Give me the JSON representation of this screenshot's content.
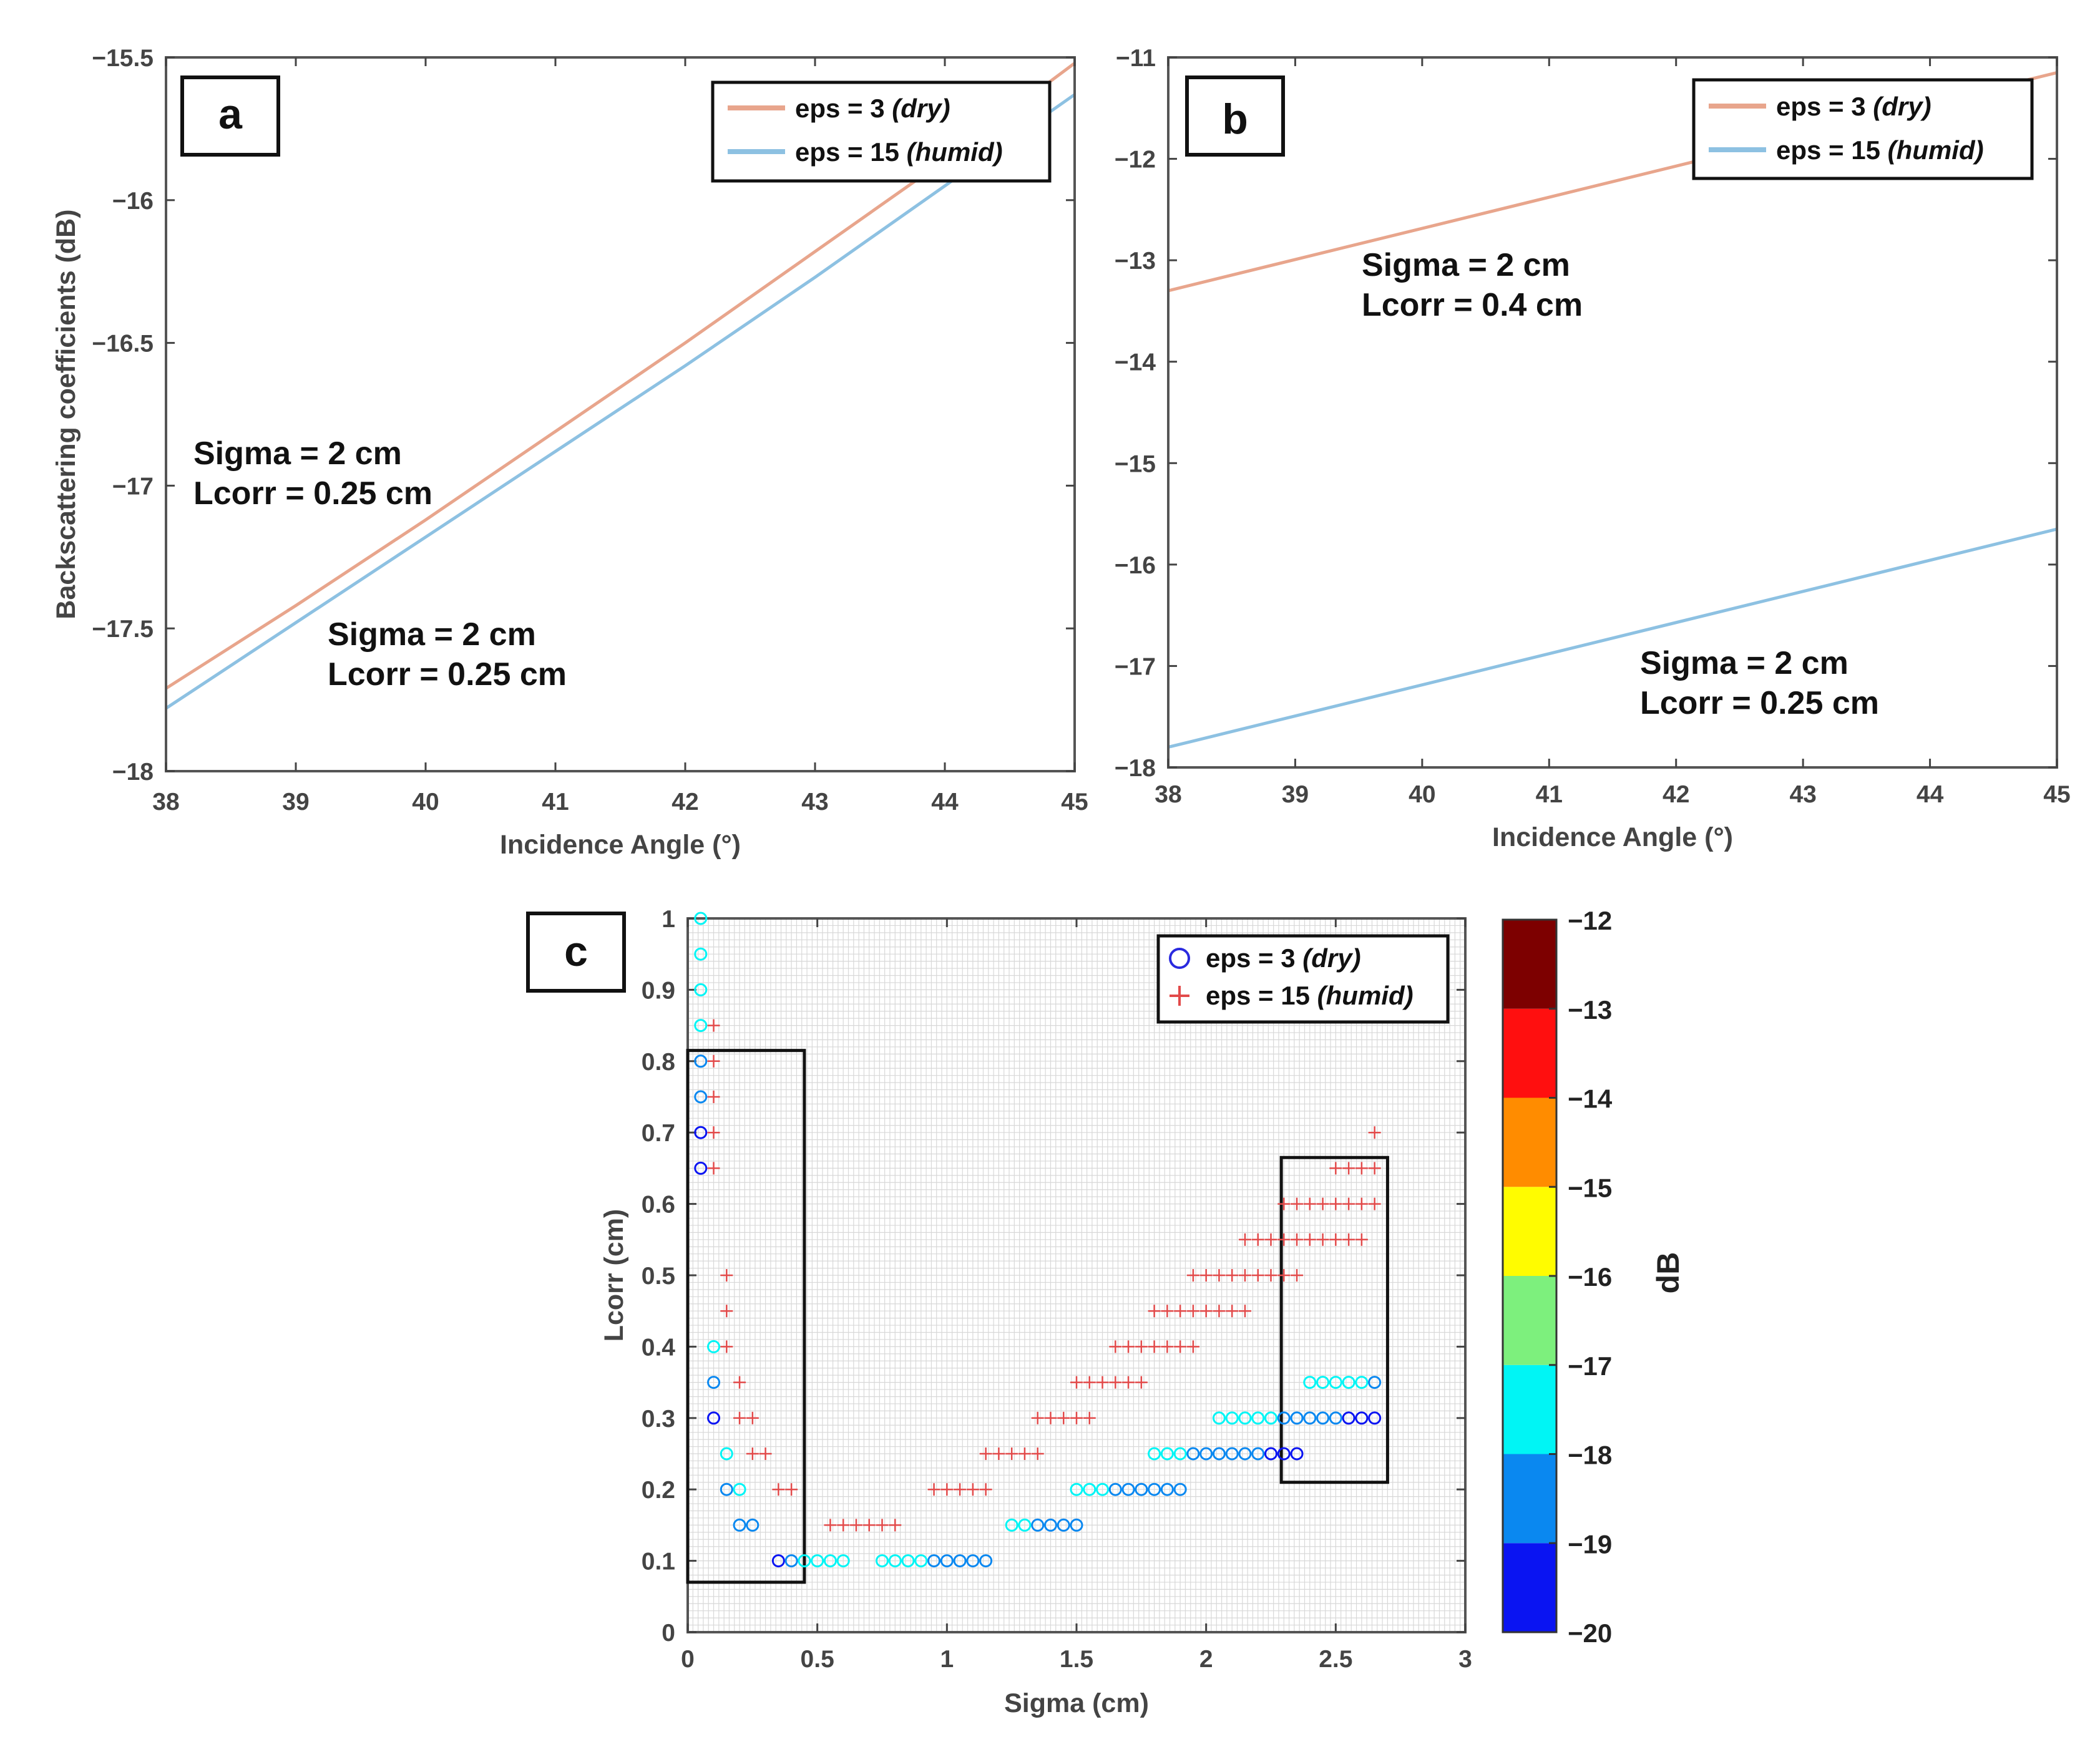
{
  "colors": {
    "dry_line": "#e8a58c",
    "humid_line": "#8dc1e2",
    "dry_marker": "#2a2adf",
    "humid_marker": "#e24a4a",
    "grid_c": "#d8d8d8",
    "axis": "#444444"
  },
  "chart_data": [
    {
      "panel": "a",
      "type": "line",
      "xlabel": "Incidence Angle (°)",
      "ylabel": "Backscattering coefficients (dB)",
      "xlim": [
        38,
        45
      ],
      "ylim": [
        -18,
        -15.5
      ],
      "xticks": [
        38,
        39,
        40,
        41,
        42,
        43,
        44,
        45
      ],
      "yticks": [
        -15.5,
        -16,
        -16.5,
        -17,
        -17.5,
        -18
      ],
      "ytick_labels": [
        "−15.5",
        "−16",
        "−16.5",
        "−17",
        "−17.5",
        "−18"
      ],
      "series": [
        {
          "name": "eps = 3",
          "italic": "(dry)",
          "color_key": "dry_line",
          "x": [
            38,
            39,
            40,
            41,
            42,
            43,
            44,
            45
          ],
          "y": [
            -17.71,
            -17.42,
            -17.12,
            -16.81,
            -16.5,
            -16.18,
            -15.86,
            -15.52
          ]
        },
        {
          "name": "eps = 15",
          "italic": "(humid)",
          "color_key": "humid_line",
          "x": [
            38,
            39,
            40,
            41,
            42,
            43,
            44,
            45
          ],
          "y": [
            -17.78,
            -17.48,
            -17.18,
            -16.88,
            -16.58,
            -16.27,
            -15.95,
            -15.63
          ]
        }
      ],
      "annotations": [
        {
          "lines": [
            "Sigma = 2 cm",
            "Lcorr = 0.25 cm"
          ]
        },
        {
          "lines": [
            "Sigma = 2 cm",
            "Lcorr = 0.25 cm"
          ]
        }
      ],
      "legend_position": "top-right"
    },
    {
      "panel": "b",
      "type": "line",
      "xlabel": "Incidence Angle (°)",
      "ylabel": "",
      "xlim": [
        38,
        45
      ],
      "ylim": [
        -18,
        -11
      ],
      "xticks": [
        38,
        39,
        40,
        41,
        42,
        43,
        44,
        45
      ],
      "yticks": [
        -11,
        -12,
        -13,
        -14,
        -15,
        -16,
        -17,
        -18
      ],
      "ytick_labels": [
        "−11",
        "−12",
        "−13",
        "−14",
        "−15",
        "−16",
        "−17",
        "−18"
      ],
      "series": [
        {
          "name": "eps = 3",
          "italic": "(dry)",
          "color_key": "dry_line",
          "x": [
            38,
            45
          ],
          "y": [
            -13.3,
            -11.15
          ]
        },
        {
          "name": "eps = 15",
          "italic": "(humid)",
          "color_key": "humid_line",
          "x": [
            38,
            45
          ],
          "y": [
            -17.8,
            -15.65
          ]
        }
      ],
      "annotations": [
        {
          "lines": [
            "Sigma = 2 cm",
            "Lcorr = 0.4 cm"
          ]
        },
        {
          "lines": [
            "Sigma = 2 cm",
            "Lcorr = 0.25 cm"
          ]
        }
      ],
      "legend_position": "top-right"
    },
    {
      "panel": "c",
      "type": "scatter",
      "xlabel": "Sigma (cm)",
      "ylabel": "Lcorr (cm)",
      "xlim": [
        0,
        3
      ],
      "ylim": [
        0,
        1
      ],
      "xticks": [
        0,
        0.5,
        1,
        1.5,
        2,
        2.5,
        3
      ],
      "xtick_labels": [
        "0",
        "0.5",
        "1",
        "1.5",
        "2",
        "2.5",
        "3"
      ],
      "yticks": [
        0,
        0.1,
        0.2,
        0.3,
        0.4,
        0.5,
        0.6,
        0.7,
        0.8,
        0.9,
        1
      ],
      "ytick_labels": [
        "0",
        "0.1",
        "0.2",
        "0.3",
        "0.4",
        "0.5",
        "0.6",
        "0.7",
        "0.8",
        "0.9",
        "1"
      ],
      "colorbar": {
        "label": "dB",
        "ticks": [
          -12,
          -13,
          -14,
          -15,
          -16,
          -17,
          -18,
          -19,
          -20
        ],
        "tick_labels": [
          "−12",
          "−13",
          "−14",
          "−15",
          "−16",
          "−17",
          "−18",
          "−19",
          "−20"
        ],
        "bands": [
          {
            "from": -20,
            "to": -19,
            "color": "#0a14f2"
          },
          {
            "from": -19,
            "to": -18,
            "color": "#0a88f0"
          },
          {
            "from": -18,
            "to": -17,
            "color": "#00f5f5"
          },
          {
            "from": -17,
            "to": -16,
            "color": "#7df07d"
          },
          {
            "from": -16,
            "to": -15,
            "color": "#fffc00"
          },
          {
            "from": -15,
            "to": -14,
            "color": "#ff8c00"
          },
          {
            "from": -14,
            "to": -13,
            "color": "#ff0f0f"
          },
          {
            "from": -13,
            "to": -12,
            "color": "#7d0000"
          }
        ]
      },
      "series": [
        {
          "name": "eps = 3",
          "italic": "(dry)",
          "marker": "circle",
          "points": [
            [
              0.05,
              1.0,
              -17.5
            ],
            [
              0.05,
              0.95,
              -17.5
            ],
            [
              0.05,
              0.9,
              -17.5
            ],
            [
              0.05,
              0.85,
              -17.5
            ],
            [
              0.05,
              0.8,
              -18.5
            ],
            [
              0.05,
              0.75,
              -18.5
            ],
            [
              0.05,
              0.7,
              -19.5
            ],
            [
              0.05,
              0.65,
              -19.5
            ],
            [
              0.1,
              0.4,
              -17.5
            ],
            [
              0.1,
              0.35,
              -18.5
            ],
            [
              0.1,
              0.3,
              -19.5
            ],
            [
              0.15,
              0.25,
              -17.5
            ],
            [
              0.15,
              0.2,
              -18.5
            ],
            [
              0.2,
              0.2,
              -17.5
            ],
            [
              0.2,
              0.15,
              -18.5
            ],
            [
              0.25,
              0.15,
              -18.5
            ],
            [
              0.35,
              0.1,
              -19.5
            ],
            [
              0.4,
              0.1,
              -18.5
            ],
            [
              0.45,
              0.1,
              -17.5
            ],
            [
              0.5,
              0.1,
              -17.5
            ],
            [
              0.55,
              0.1,
              -17.5
            ],
            [
              0.6,
              0.1,
              -17.5
            ],
            [
              0.75,
              0.1,
              -17.5
            ],
            [
              0.8,
              0.1,
              -17.5
            ],
            [
              0.85,
              0.1,
              -17.5
            ],
            [
              0.9,
              0.1,
              -17.5
            ],
            [
              0.95,
              0.1,
              -18.5
            ],
            [
              1.0,
              0.1,
              -18.5
            ],
            [
              1.05,
              0.1,
              -18.5
            ],
            [
              1.1,
              0.1,
              -18.5
            ],
            [
              1.15,
              0.1,
              -18.5
            ],
            [
              1.25,
              0.15,
              -17.5
            ],
            [
              1.3,
              0.15,
              -17.5
            ],
            [
              1.35,
              0.15,
              -18.5
            ],
            [
              1.4,
              0.15,
              -18.5
            ],
            [
              1.45,
              0.15,
              -18.5
            ],
            [
              1.5,
              0.15,
              -18.5
            ],
            [
              1.5,
              0.2,
              -17.5
            ],
            [
              1.55,
              0.2,
              -17.5
            ],
            [
              1.6,
              0.2,
              -17.5
            ],
            [
              1.65,
              0.2,
              -18.5
            ],
            [
              1.7,
              0.2,
              -18.5
            ],
            [
              1.75,
              0.2,
              -18.5
            ],
            [
              1.8,
              0.2,
              -18.5
            ],
            [
              1.85,
              0.2,
              -18.5
            ],
            [
              1.9,
              0.2,
              -18.5
            ],
            [
              1.8,
              0.25,
              -17.5
            ],
            [
              1.85,
              0.25,
              -17.5
            ],
            [
              1.9,
              0.25,
              -17.5
            ],
            [
              1.95,
              0.25,
              -18.5
            ],
            [
              2.0,
              0.25,
              -18.5
            ],
            [
              2.05,
              0.25,
              -18.5
            ],
            [
              2.1,
              0.25,
              -18.5
            ],
            [
              2.15,
              0.25,
              -18.5
            ],
            [
              2.2,
              0.25,
              -18.5
            ],
            [
              2.25,
              0.25,
              -19.5
            ],
            [
              2.3,
              0.25,
              -19.5
            ],
            [
              2.35,
              0.25,
              -19.5
            ],
            [
              2.05,
              0.3,
              -17.5
            ],
            [
              2.1,
              0.3,
              -17.5
            ],
            [
              2.15,
              0.3,
              -17.5
            ],
            [
              2.2,
              0.3,
              -17.5
            ],
            [
              2.25,
              0.3,
              -17.5
            ],
            [
              2.3,
              0.3,
              -18.5
            ],
            [
              2.35,
              0.3,
              -18.5
            ],
            [
              2.4,
              0.3,
              -18.5
            ],
            [
              2.45,
              0.3,
              -18.5
            ],
            [
              2.5,
              0.3,
              -18.5
            ],
            [
              2.55,
              0.3,
              -19.5
            ],
            [
              2.6,
              0.3,
              -19.5
            ],
            [
              2.65,
              0.3,
              -19.5
            ],
            [
              2.4,
              0.35,
              -17.5
            ],
            [
              2.45,
              0.35,
              -17.5
            ],
            [
              2.5,
              0.35,
              -17.5
            ],
            [
              2.55,
              0.35,
              -17.5
            ],
            [
              2.6,
              0.35,
              -17.5
            ],
            [
              2.65,
              0.35,
              -18.5
            ]
          ]
        },
        {
          "name": "eps = 15",
          "italic": "(humid)",
          "marker": "plus",
          "points": [
            [
              0.1,
              0.85
            ],
            [
              0.1,
              0.8
            ],
            [
              0.1,
              0.75
            ],
            [
              0.1,
              0.7
            ],
            [
              0.1,
              0.65
            ],
            [
              0.15,
              0.5
            ],
            [
              0.15,
              0.45
            ],
            [
              0.15,
              0.4
            ],
            [
              0.2,
              0.35
            ],
            [
              0.2,
              0.3
            ],
            [
              0.25,
              0.3
            ],
            [
              0.25,
              0.25
            ],
            [
              0.3,
              0.25
            ],
            [
              0.35,
              0.2
            ],
            [
              0.4,
              0.2
            ],
            [
              0.55,
              0.15
            ],
            [
              0.6,
              0.15
            ],
            [
              0.65,
              0.15
            ],
            [
              0.7,
              0.15
            ],
            [
              0.75,
              0.15
            ],
            [
              0.8,
              0.15
            ],
            [
              0.95,
              0.2
            ],
            [
              1.0,
              0.2
            ],
            [
              1.05,
              0.2
            ],
            [
              1.1,
              0.2
            ],
            [
              1.15,
              0.2
            ],
            [
              1.15,
              0.25
            ],
            [
              1.2,
              0.25
            ],
            [
              1.25,
              0.25
            ],
            [
              1.3,
              0.25
            ],
            [
              1.35,
              0.25
            ],
            [
              1.35,
              0.3
            ],
            [
              1.4,
              0.3
            ],
            [
              1.45,
              0.3
            ],
            [
              1.5,
              0.3
            ],
            [
              1.55,
              0.3
            ],
            [
              1.5,
              0.35
            ],
            [
              1.55,
              0.35
            ],
            [
              1.6,
              0.35
            ],
            [
              1.65,
              0.35
            ],
            [
              1.7,
              0.35
            ],
            [
              1.75,
              0.35
            ],
            [
              1.65,
              0.4
            ],
            [
              1.7,
              0.4
            ],
            [
              1.75,
              0.4
            ],
            [
              1.8,
              0.4
            ],
            [
              1.85,
              0.4
            ],
            [
              1.9,
              0.4
            ],
            [
              1.95,
              0.4
            ],
            [
              1.8,
              0.45
            ],
            [
              1.85,
              0.45
            ],
            [
              1.9,
              0.45
            ],
            [
              1.95,
              0.45
            ],
            [
              2.0,
              0.45
            ],
            [
              2.05,
              0.45
            ],
            [
              2.1,
              0.45
            ],
            [
              2.15,
              0.45
            ],
            [
              1.95,
              0.5
            ],
            [
              2.0,
              0.5
            ],
            [
              2.05,
              0.5
            ],
            [
              2.1,
              0.5
            ],
            [
              2.15,
              0.5
            ],
            [
              2.2,
              0.5
            ],
            [
              2.25,
              0.5
            ],
            [
              2.3,
              0.5
            ],
            [
              2.35,
              0.5
            ],
            [
              2.15,
              0.55
            ],
            [
              2.2,
              0.55
            ],
            [
              2.25,
              0.55
            ],
            [
              2.3,
              0.55
            ],
            [
              2.35,
              0.55
            ],
            [
              2.4,
              0.55
            ],
            [
              2.45,
              0.55
            ],
            [
              2.5,
              0.55
            ],
            [
              2.55,
              0.55
            ],
            [
              2.6,
              0.55
            ],
            [
              2.3,
              0.6
            ],
            [
              2.35,
              0.6
            ],
            [
              2.4,
              0.6
            ],
            [
              2.45,
              0.6
            ],
            [
              2.5,
              0.6
            ],
            [
              2.55,
              0.6
            ],
            [
              2.6,
              0.6
            ],
            [
              2.65,
              0.6
            ],
            [
              2.5,
              0.65
            ],
            [
              2.55,
              0.65
            ],
            [
              2.6,
              0.65
            ],
            [
              2.65,
              0.65
            ],
            [
              2.65,
              0.7
            ]
          ]
        }
      ],
      "highlight_boxes": [
        {
          "x0": 0.0,
          "x1": 0.45,
          "y0": 0.07,
          "y1": 0.815
        },
        {
          "x0": 2.29,
          "x1": 2.7,
          "y0": 0.21,
          "y1": 0.665
        }
      ],
      "legend_position": "top-right"
    }
  ]
}
